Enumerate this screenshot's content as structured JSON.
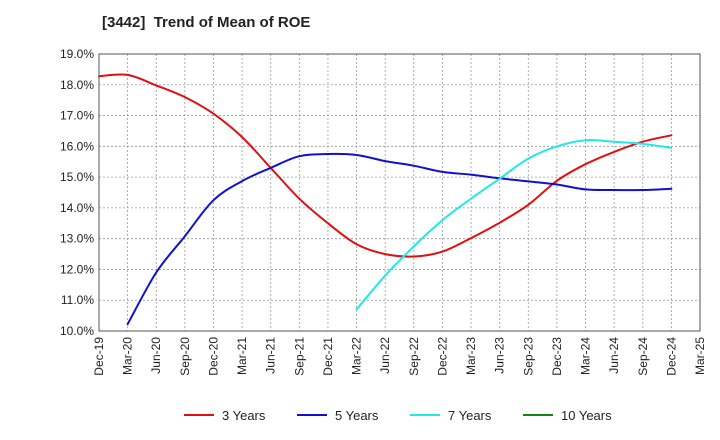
{
  "chart_data": {
    "type": "line",
    "title": "[3442]  Trend of Mean of ROE",
    "xlabel": "",
    "ylabel": "",
    "ylim": [
      10.0,
      19.0
    ],
    "y_ticks": [
      "10.0%",
      "11.0%",
      "12.0%",
      "13.0%",
      "14.0%",
      "15.0%",
      "16.0%",
      "17.0%",
      "18.0%",
      "19.0%"
    ],
    "x_ticks": [
      "Dec-19",
      "Mar-20",
      "Jun-20",
      "Sep-20",
      "Dec-20",
      "Mar-21",
      "Jun-21",
      "Sep-21",
      "Dec-21",
      "Mar-22",
      "Jun-22",
      "Sep-22",
      "Dec-22",
      "Mar-23",
      "Jun-23",
      "Sep-23",
      "Dec-23",
      "Mar-24",
      "Jun-24",
      "Sep-24",
      "Dec-24",
      "Mar-25"
    ],
    "grid": true,
    "legend_position": "bottom",
    "series": [
      {
        "name": "3 Years",
        "color": "#dd1111",
        "values": [
          18.28,
          18.32,
          17.98,
          17.6,
          17.06,
          16.3,
          15.3,
          14.3,
          13.5,
          12.82,
          12.5,
          12.42,
          12.58,
          13.02,
          13.52,
          14.1,
          14.88,
          15.42,
          15.82,
          16.15,
          16.36,
          null
        ]
      },
      {
        "name": "5 Years",
        "color": "#1111cc",
        "values": [
          null,
          10.22,
          11.9,
          13.08,
          14.25,
          14.87,
          15.3,
          15.68,
          15.75,
          15.72,
          15.52,
          15.37,
          15.17,
          15.08,
          14.96,
          14.86,
          14.76,
          14.6,
          14.58,
          14.58,
          14.62,
          null
        ]
      },
      {
        "name": "7 Years",
        "color": "#22e8e8",
        "values": [
          null,
          null,
          null,
          null,
          null,
          null,
          null,
          null,
          null,
          10.7,
          11.8,
          12.75,
          13.6,
          14.3,
          14.95,
          15.6,
          16.0,
          16.2,
          16.15,
          16.08,
          15.95,
          null
        ]
      },
      {
        "name": "10 Years",
        "color": "#118811",
        "values": [
          null,
          null,
          null,
          null,
          null,
          null,
          null,
          null,
          null,
          null,
          null,
          null,
          null,
          null,
          null,
          null,
          null,
          null,
          null,
          null,
          null,
          null
        ]
      }
    ]
  }
}
